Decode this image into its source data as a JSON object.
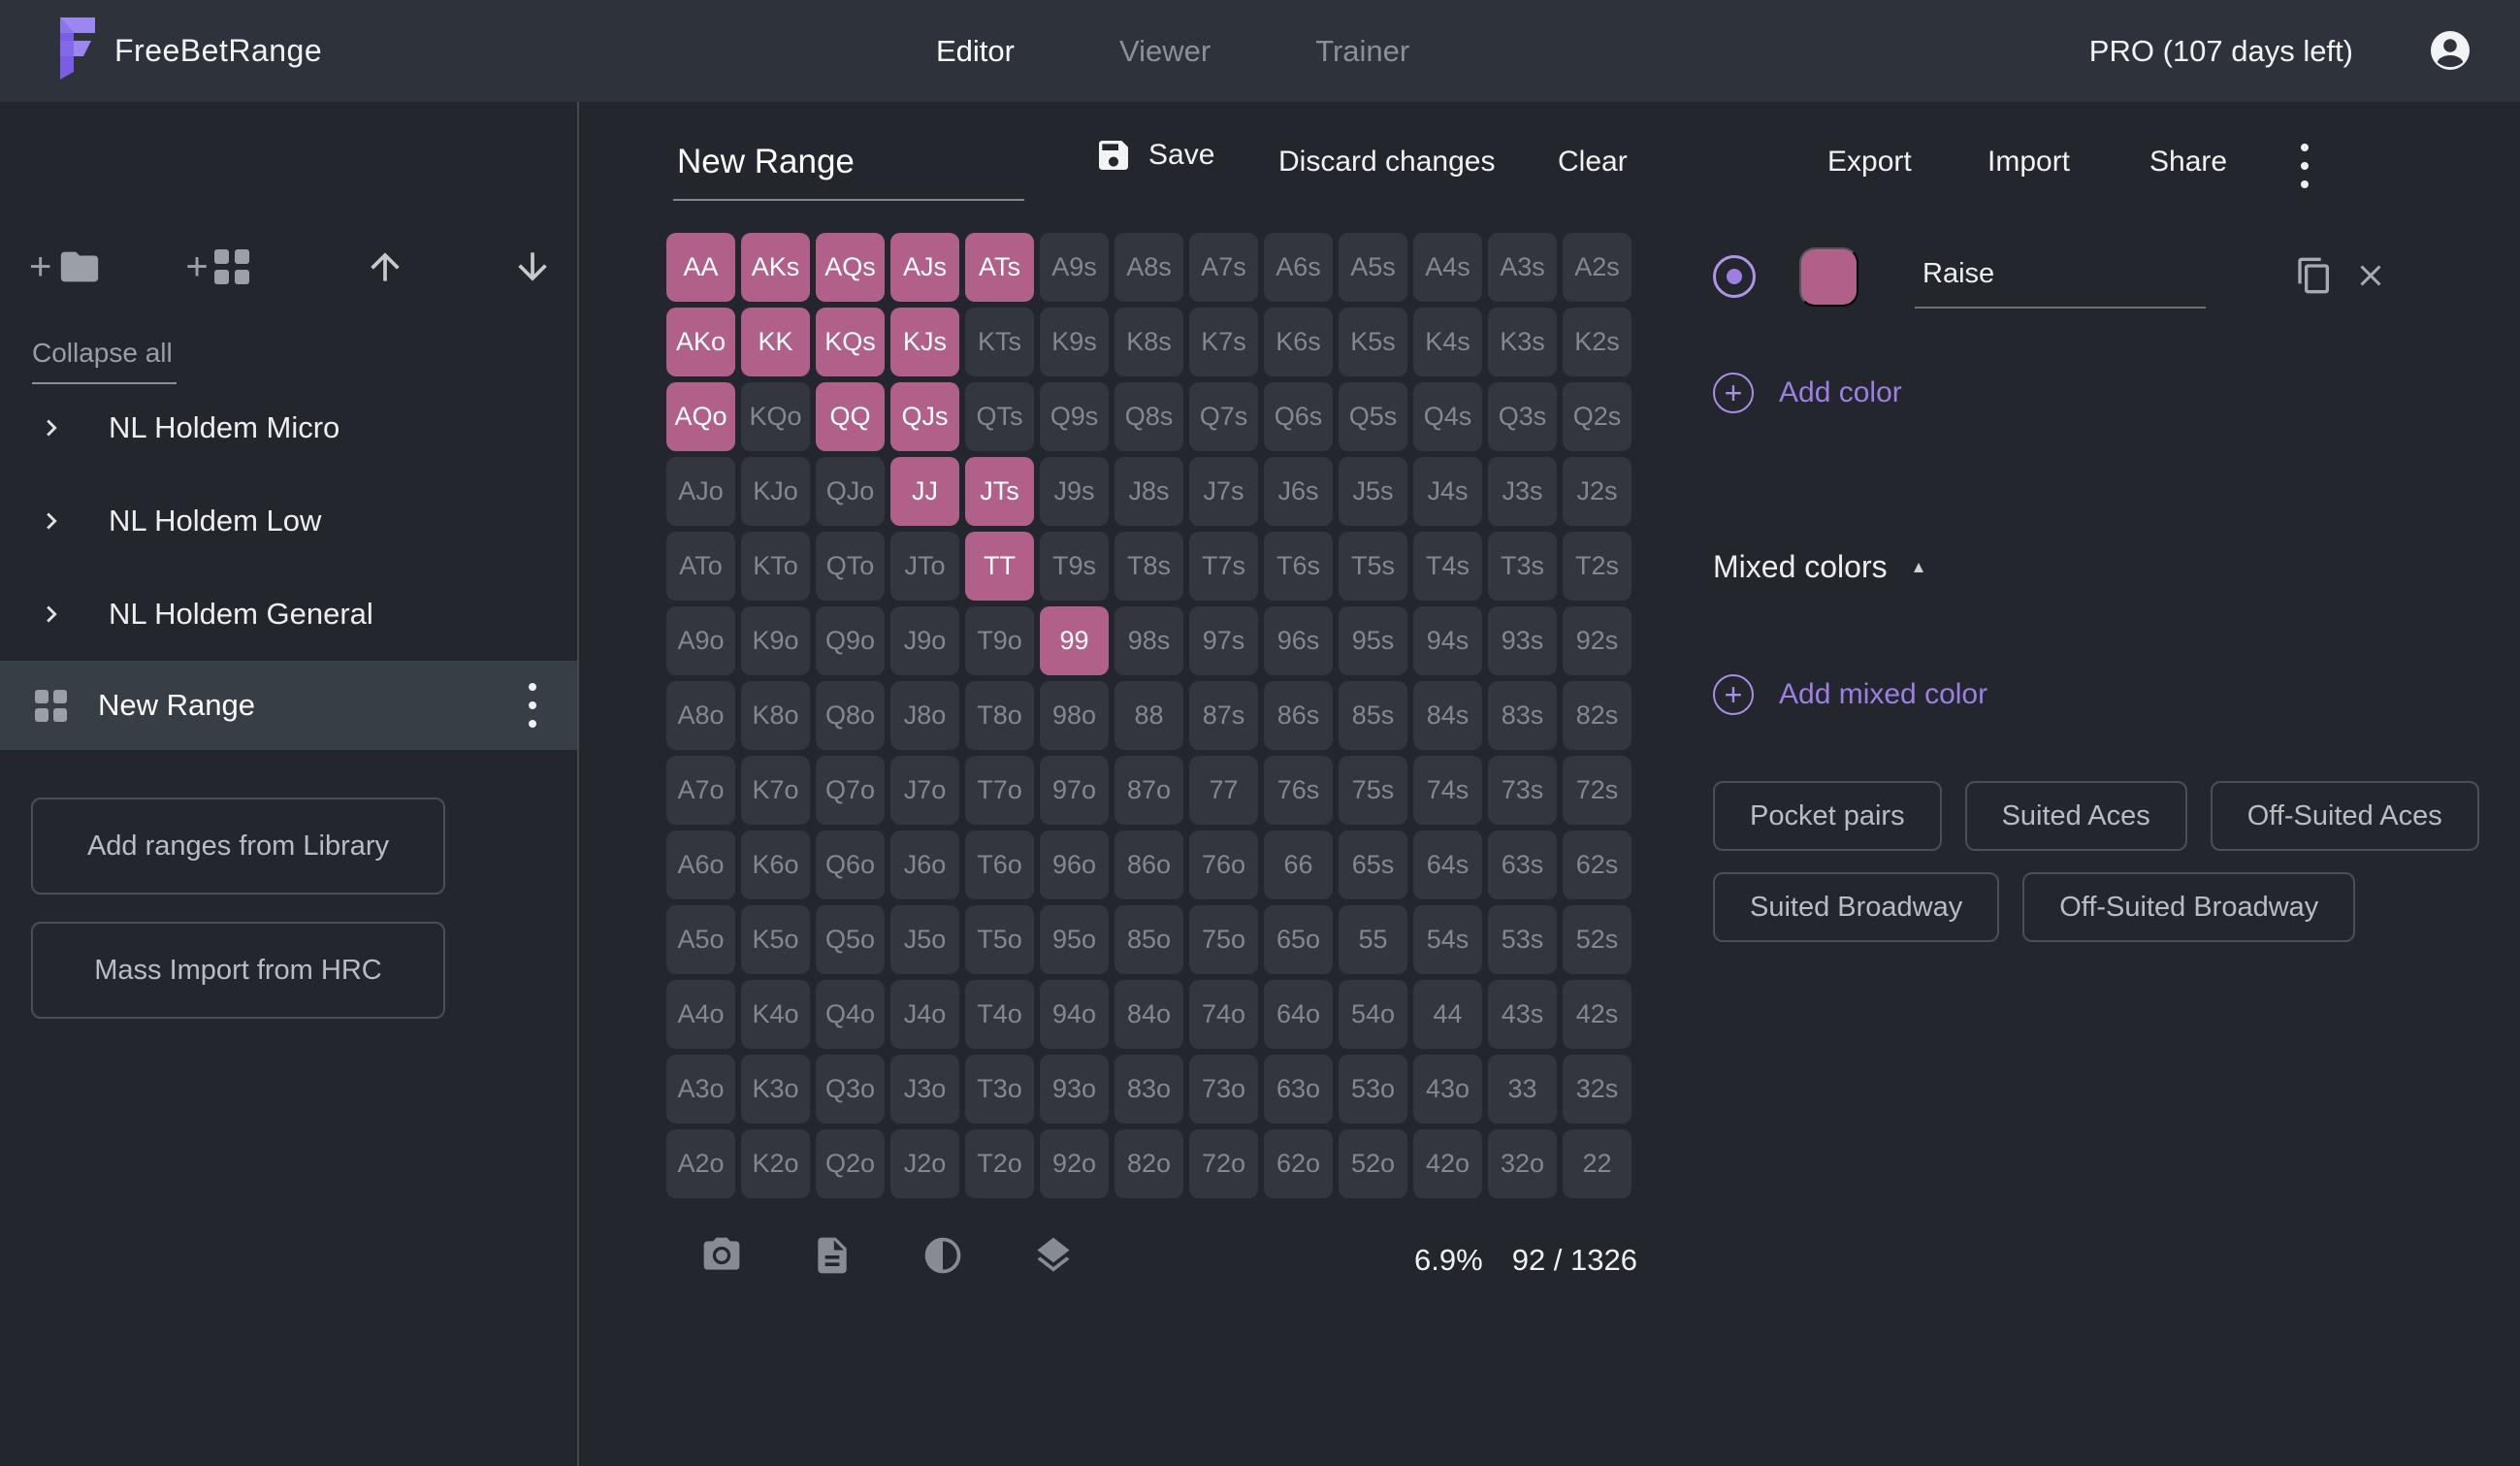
{
  "app": {
    "title": "FreeBetRange",
    "plan_badge": "PRO (107 days left)"
  },
  "nav": {
    "tabs": [
      {
        "label": "Editor",
        "active": true
      },
      {
        "label": "Viewer",
        "active": false
      },
      {
        "label": "Trainer",
        "active": false
      }
    ]
  },
  "sidebar": {
    "collapse_all": "Collapse all",
    "folders": [
      "NL Holdem Micro",
      "NL Holdem Low",
      "NL Holdem General"
    ],
    "selected_range": "New Range",
    "buttons": {
      "library": "Add ranges from Library",
      "hrc": "Mass Import from HRC"
    }
  },
  "editor": {
    "range_name": "New Range",
    "toolbar": {
      "save": "Save",
      "discard": "Discard changes",
      "clear": "Clear",
      "export": "Export",
      "import": "Import",
      "share": "Share"
    },
    "stats": {
      "percent": "6.9%",
      "combos": "92 / 1326"
    }
  },
  "colors_panel": {
    "active_color": {
      "label": "Raise",
      "hex": "#b06089"
    },
    "add_color": "Add color",
    "mixed_colors": "Mixed colors",
    "collapse_glyph": "▲",
    "add_mixed_color": "Add mixed color",
    "presets": [
      "Pocket pairs",
      "Suited Aces",
      "Off-Suited Aces",
      "Suited Broadway",
      "Off-Suited Broadway"
    ]
  },
  "grid": {
    "rows": [
      [
        "AA",
        "AKs",
        "AQs",
        "AJs",
        "ATs",
        "A9s",
        "A8s",
        "A7s",
        "A6s",
        "A5s",
        "A4s",
        "A3s",
        "A2s"
      ],
      [
        "AKo",
        "KK",
        "KQs",
        "KJs",
        "KTs",
        "K9s",
        "K8s",
        "K7s",
        "K6s",
        "K5s",
        "K4s",
        "K3s",
        "K2s"
      ],
      [
        "AQo",
        "KQo",
        "QQ",
        "QJs",
        "QTs",
        "Q9s",
        "Q8s",
        "Q7s",
        "Q6s",
        "Q5s",
        "Q4s",
        "Q3s",
        "Q2s"
      ],
      [
        "AJo",
        "KJo",
        "QJo",
        "JJ",
        "JTs",
        "J9s",
        "J8s",
        "J7s",
        "J6s",
        "J5s",
        "J4s",
        "J3s",
        "J2s"
      ],
      [
        "ATo",
        "KTo",
        "QTo",
        "JTo",
        "TT",
        "T9s",
        "T8s",
        "T7s",
        "T6s",
        "T5s",
        "T4s",
        "T3s",
        "T2s"
      ],
      [
        "A9o",
        "K9o",
        "Q9o",
        "J9o",
        "T9o",
        "99",
        "98s",
        "97s",
        "96s",
        "95s",
        "94s",
        "93s",
        "92s"
      ],
      [
        "A8o",
        "K8o",
        "Q8o",
        "J8o",
        "T8o",
        "98o",
        "88",
        "87s",
        "86s",
        "85s",
        "84s",
        "83s",
        "82s"
      ],
      [
        "A7o",
        "K7o",
        "Q7o",
        "J7o",
        "T7o",
        "97o",
        "87o",
        "77",
        "76s",
        "75s",
        "74s",
        "73s",
        "72s"
      ],
      [
        "A6o",
        "K6o",
        "Q6o",
        "J6o",
        "T6o",
        "96o",
        "86o",
        "76o",
        "66",
        "65s",
        "64s",
        "63s",
        "62s"
      ],
      [
        "A5o",
        "K5o",
        "Q5o",
        "J5o",
        "T5o",
        "95o",
        "85o",
        "75o",
        "65o",
        "55",
        "54s",
        "53s",
        "52s"
      ],
      [
        "A4o",
        "K4o",
        "Q4o",
        "J4o",
        "T4o",
        "94o",
        "84o",
        "74o",
        "64o",
        "54o",
        "44",
        "43s",
        "42s"
      ],
      [
        "A3o",
        "K3o",
        "Q3o",
        "J3o",
        "T3o",
        "93o",
        "83o",
        "73o",
        "63o",
        "53o",
        "43o",
        "33",
        "32s"
      ],
      [
        "A2o",
        "K2o",
        "Q2o",
        "J2o",
        "T2o",
        "92o",
        "82o",
        "72o",
        "62o",
        "52o",
        "42o",
        "32o",
        "22"
      ]
    ],
    "selected": [
      "AA",
      "AKs",
      "AQs",
      "AJs",
      "ATs",
      "AKo",
      "KK",
      "KQs",
      "KJs",
      "AQo",
      "QQ",
      "QJs",
      "JJ",
      "JTs",
      "TT",
      "99"
    ]
  },
  "theme": {
    "topbar_bg": "#2e323b",
    "content_bg": "#24262d",
    "cell_bg": "#33363d",
    "cell_selected": "#b06089",
    "accent_purple": "#9d7fe3",
    "brand_purple": "#8468ea"
  }
}
